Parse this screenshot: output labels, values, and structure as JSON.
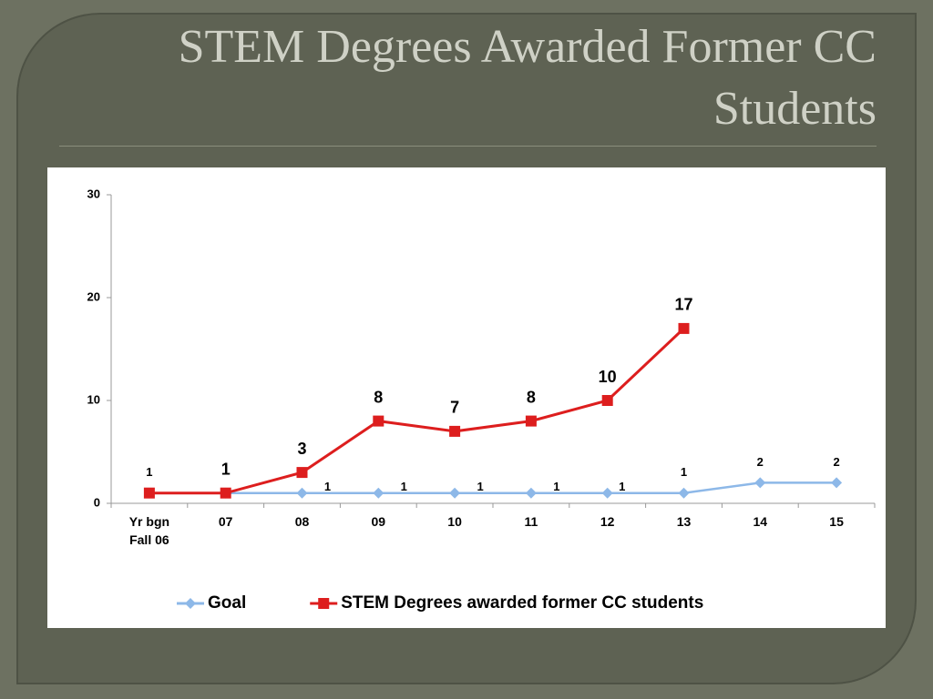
{
  "chart_data": {
    "type": "line",
    "title": "STEM Degrees Awarded Former CC Students",
    "categories": [
      "Yr bgn Fall 06",
      "07",
      "08",
      "09",
      "10",
      "11",
      "12",
      "13",
      "14",
      "15"
    ],
    "series": [
      {
        "name": "Goal",
        "color": "#8db8e8",
        "marker": "diamond",
        "values": [
          1,
          1,
          1,
          1,
          1,
          1,
          1,
          1,
          2,
          2
        ],
        "value_labels": [
          "1",
          null,
          "1",
          "1",
          "1",
          "1",
          "1",
          "1",
          "2",
          "2"
        ]
      },
      {
        "name": "STEM Degrees awarded former CC students",
        "color": "#dd1e1e",
        "marker": "square",
        "values": [
          1,
          1,
          3,
          8,
          7,
          8,
          10,
          17,
          null,
          null
        ],
        "value_labels": [
          null,
          "1",
          "3",
          "8",
          "7",
          "8",
          "10",
          "17",
          null,
          null
        ]
      }
    ],
    "ylim": [
      0,
      30
    ],
    "yticks": [
      0,
      10,
      20,
      30
    ],
    "grid": false,
    "legend": "bottom"
  }
}
